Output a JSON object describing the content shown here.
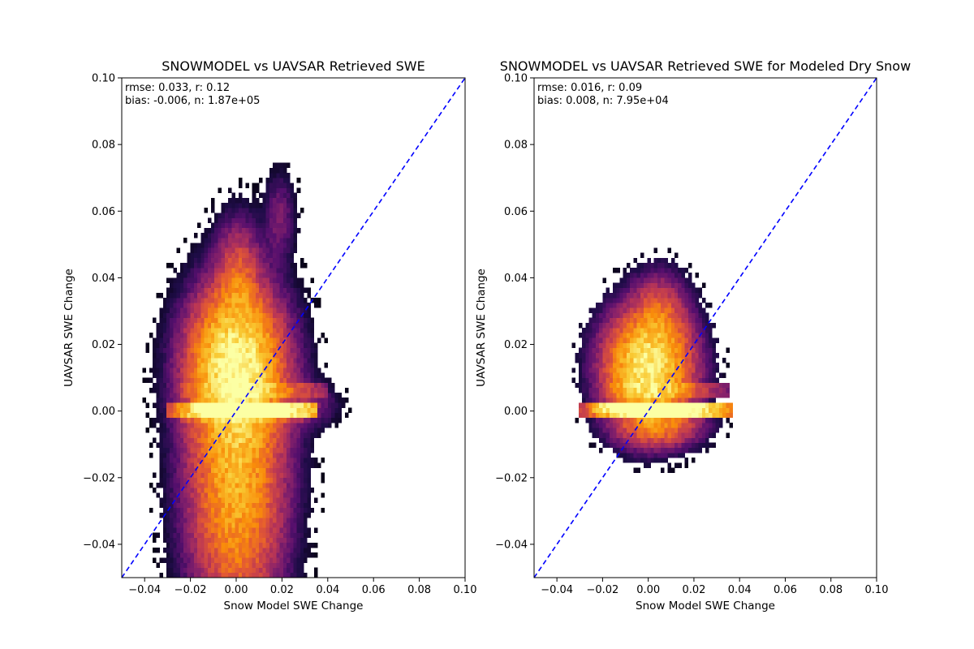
{
  "chart_data": [
    {
      "type": "heatmap",
      "subtype": "2d-histogram",
      "title": "SNOWMODEL vs UAVSAR Retrieved SWE",
      "xlabel": "Snow Model SWE Change",
      "ylabel": "UAVSAR SWE Change",
      "xlim": [
        -0.05,
        0.1
      ],
      "ylim": [
        -0.05,
        0.1
      ],
      "xticks": [
        -0.04,
        -0.02,
        0.0,
        0.02,
        0.04,
        0.06,
        0.08,
        0.1
      ],
      "xtick_labels": [
        "−0.04",
        "−0.02",
        "0.00",
        "0.02",
        "0.04",
        "0.06",
        "0.08",
        "0.10"
      ],
      "yticks": [
        -0.04,
        -0.02,
        0.0,
        0.02,
        0.04,
        0.06,
        0.08,
        0.1
      ],
      "ytick_labels": [
        "−0.04",
        "−0.02",
        "0.00",
        "0.02",
        "0.04",
        "0.06",
        "0.08",
        "0.10"
      ],
      "stats_lines": [
        "rmse: 0.033, r: 0.12",
        "bias: -0.006, n: 1.87e+05"
      ],
      "stats": {
        "rmse": 0.033,
        "r": 0.12,
        "bias": -0.006,
        "n": 187000
      },
      "reference_line": {
        "label": "1:1",
        "style": "dashed",
        "color": "#0000ff"
      },
      "colormap": "inferno",
      "density_model": {
        "bin_size": 0.0015,
        "components": [
          {
            "cx": 0.0,
            "cy": 0.014,
            "sx": 0.012,
            "sy": 0.013,
            "w": 0.85
          },
          {
            "cx": 0.001,
            "cy": 0.04,
            "sx": 0.006,
            "sy": 0.01,
            "w": 0.22
          },
          {
            "cx": 0.019,
            "cy": 0.058,
            "sx": 0.004,
            "sy": 0.008,
            "w": 0.08
          },
          {
            "cx": 0.0,
            "cy": -0.02,
            "sx": 0.012,
            "sy": 0.025,
            "w": 0.55
          },
          {
            "cx": 0.03,
            "cy": 0.002,
            "sx": 0.008,
            "sy": 0.004,
            "w": 0.1
          }
        ],
        "bands": [
          {
            "y": 0.0,
            "h": 0.0011,
            "x0": -0.03,
            "x1": 0.035,
            "cx": 0.008,
            "sx": 0.02,
            "w": 1.1
          },
          {
            "y": 0.0015,
            "h": 0.0008,
            "x0": -0.02,
            "x1": 0.03,
            "cx": -0.005,
            "sx": 0.015,
            "w": 0.45
          },
          {
            "y": 0.0065,
            "h": 0.0012,
            "x0": -0.025,
            "x1": 0.04,
            "cx": 0.01,
            "sx": 0.02,
            "w": 0.18
          },
          {
            "y": -0.0015,
            "h": 0.0008,
            "x0": -0.025,
            "x1": 0.03,
            "cx": 0.0,
            "sx": 0.02,
            "w": 0.12
          }
        ],
        "threshold": 0.012,
        "seed": 11
      }
    },
    {
      "type": "heatmap",
      "subtype": "2d-histogram",
      "title": "SNOWMODEL vs UAVSAR Retrieved SWE for Modeled Dry Snow",
      "xlabel": "Snow Model SWE Change",
      "ylabel": "UAVSAR SWE Change",
      "xlim": [
        -0.05,
        0.1
      ],
      "ylim": [
        -0.05,
        0.1
      ],
      "xticks": [
        -0.04,
        -0.02,
        0.0,
        0.02,
        0.04,
        0.06,
        0.08,
        0.1
      ],
      "xtick_labels": [
        "−0.04",
        "−0.02",
        "0.00",
        "0.02",
        "0.04",
        "0.06",
        "0.08",
        "0.10"
      ],
      "yticks": [
        -0.04,
        -0.02,
        0.0,
        0.02,
        0.04,
        0.06,
        0.08,
        0.1
      ],
      "ytick_labels": [
        "−0.04",
        "−0.02",
        "0.00",
        "0.02",
        "0.04",
        "0.06",
        "0.08",
        "0.10"
      ],
      "stats_lines": [
        "rmse: 0.016, r: 0.09",
        "bias: 0.008, n: 7.95e+04"
      ],
      "stats": {
        "rmse": 0.016,
        "r": 0.09,
        "bias": 0.008,
        "n": 79500
      },
      "reference_line": {
        "label": "1:1",
        "style": "dashed",
        "color": "#0000ff"
      },
      "colormap": "inferno",
      "density_model": {
        "bin_size": 0.0015,
        "components": [
          {
            "cx": 0.0,
            "cy": 0.013,
            "sx": 0.011,
            "sy": 0.01,
            "w": 0.9
          },
          {
            "cx": 0.005,
            "cy": 0.03,
            "sx": 0.007,
            "sy": 0.007,
            "w": 0.18
          },
          {
            "cx": 0.005,
            "cy": -0.004,
            "sx": 0.011,
            "sy": 0.004,
            "w": 0.28
          }
        ],
        "bands": [
          {
            "y": 0.0,
            "h": 0.0011,
            "x0": -0.03,
            "x1": 0.037,
            "cx": 0.008,
            "sx": 0.02,
            "w": 1.1
          },
          {
            "y": 0.0015,
            "h": 0.0008,
            "x0": -0.025,
            "x1": 0.03,
            "cx": -0.005,
            "sx": 0.015,
            "w": 0.45
          },
          {
            "y": 0.0065,
            "h": 0.0012,
            "x0": -0.02,
            "x1": 0.035,
            "cx": 0.01,
            "sx": 0.02,
            "w": 0.16
          }
        ],
        "threshold": 0.018,
        "seed": 23
      }
    }
  ]
}
